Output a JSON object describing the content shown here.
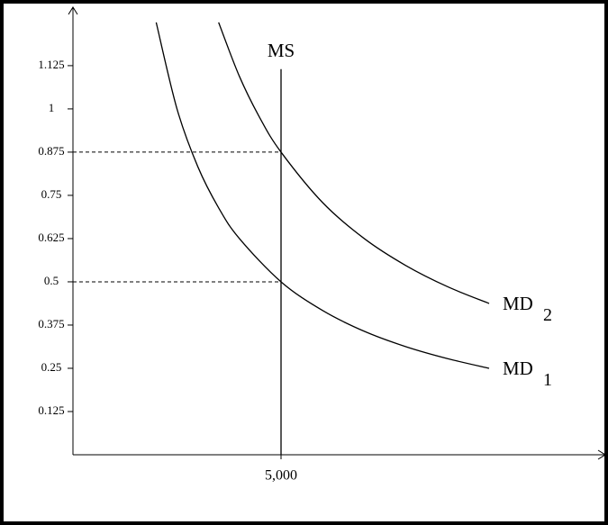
{
  "chart_data": {
    "type": "line",
    "xlim": [
      0,
      12792
    ],
    "ylim": [
      0,
      1.294
    ],
    "xticks": [
      {
        "value": 5000,
        "label": "5,000"
      }
    ],
    "yticks": [
      0.125,
      0.25,
      0.375,
      0.5,
      0.625,
      0.75,
      0.875,
      1,
      1.125
    ],
    "hlines": [
      0.875,
      0.5
    ],
    "series": [
      {
        "name": "MD",
        "subscript": "1",
        "color": "#000000",
        "x": [
          2000,
          2500,
          3000,
          3500,
          4000,
          5000,
          6000,
          7000,
          8000,
          9000,
          10000
        ],
        "values": [
          1.25,
          1,
          0.833,
          0.714,
          0.625,
          0.5,
          0.417,
          0.357,
          0.3125,
          0.278,
          0.25
        ]
      },
      {
        "name": "MD",
        "subscript": "2",
        "color": "#000000",
        "x": [
          3500,
          4000,
          4500,
          5000,
          6000,
          7000,
          8000,
          9000,
          10000
        ],
        "values": [
          1.25,
          1.094,
          0.972,
          0.875,
          0.729,
          0.625,
          0.547,
          0.486,
          0.4375
        ]
      },
      {
        "name": "MS",
        "color": "#000000",
        "x": [
          5000,
          5000
        ],
        "values": [
          0,
          1.115
        ]
      }
    ]
  }
}
